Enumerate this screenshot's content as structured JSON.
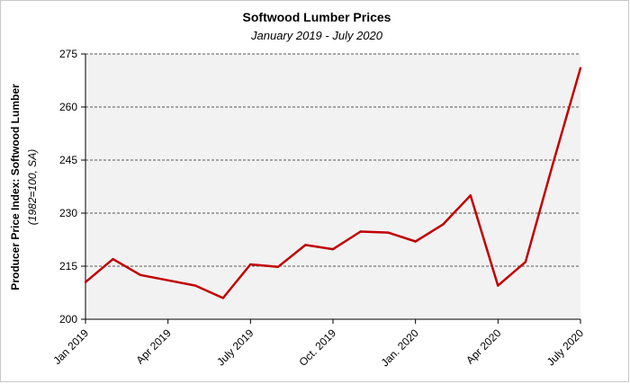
{
  "chart_data": {
    "type": "line",
    "title": "Softwood Lumber Prices",
    "subtitle": "January 2019 - July 2020",
    "ylabel": "Producer Price Index: Softwood Lumber",
    "ylabel_sub": "(1982=100, SA)",
    "xlabel": "",
    "ylim": [
      200,
      275
    ],
    "yticks": [
      200,
      215,
      230,
      245,
      260,
      275
    ],
    "grid": true,
    "x_tick_labels": [
      "Jan 2019",
      "Apr 2019",
      "July 2019",
      "Oct. 2019",
      "Jan. 2020",
      "Apr 2020",
      "July 2020"
    ],
    "x_tick_indices": [
      0,
      3,
      6,
      9,
      12,
      15,
      18
    ],
    "categories": [
      "Jan 2019",
      "Feb 2019",
      "Mar 2019",
      "Apr 2019",
      "May 2019",
      "Jun 2019",
      "Jul 2019",
      "Aug 2019",
      "Sep 2019",
      "Oct 2019",
      "Nov 2019",
      "Dec 2019",
      "Jan 2020",
      "Feb 2020",
      "Mar 2020",
      "Apr 2020",
      "May 2020",
      "Jun 2020",
      "Jul 2020"
    ],
    "series": [
      {
        "name": "Producer Price Index: Softwood Lumber",
        "color": "#c00000",
        "values": [
          210.5,
          217.0,
          212.5,
          211.0,
          209.5,
          206.0,
          215.5,
          214.8,
          221.0,
          219.8,
          224.8,
          224.5,
          222.0,
          226.8,
          235.0,
          209.5,
          216.2,
          244.0,
          271.0
        ]
      }
    ]
  }
}
